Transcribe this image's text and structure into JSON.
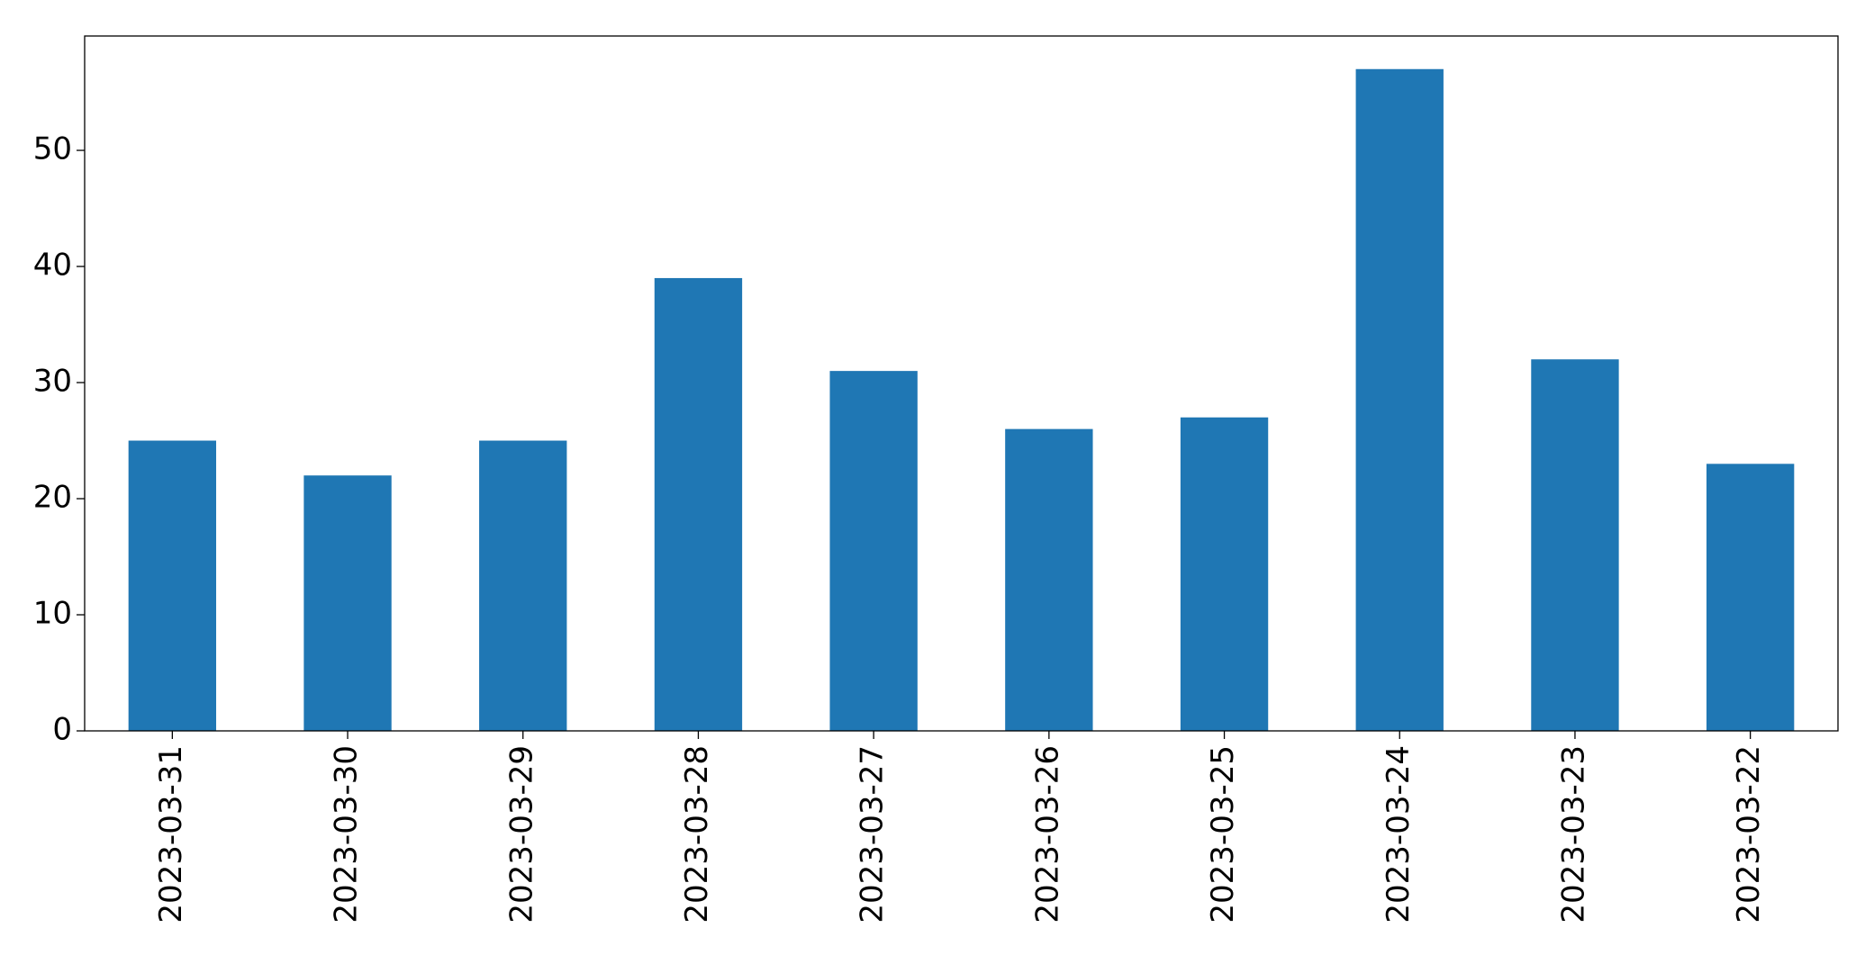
{
  "chart_data": {
    "type": "bar",
    "categories": [
      "2023-03-31",
      "2023-03-30",
      "2023-03-29",
      "2023-03-28",
      "2023-03-27",
      "2023-03-26",
      "2023-03-25",
      "2023-03-24",
      "2023-03-23",
      "2023-03-22"
    ],
    "values": [
      25,
      22,
      25,
      39,
      31,
      26,
      27,
      57,
      32,
      23
    ],
    "color": "#1f77b4",
    "ylim": [
      0,
      59.85
    ],
    "yticks": [
      0,
      10,
      20,
      30,
      40,
      50
    ],
    "grid": false
  }
}
